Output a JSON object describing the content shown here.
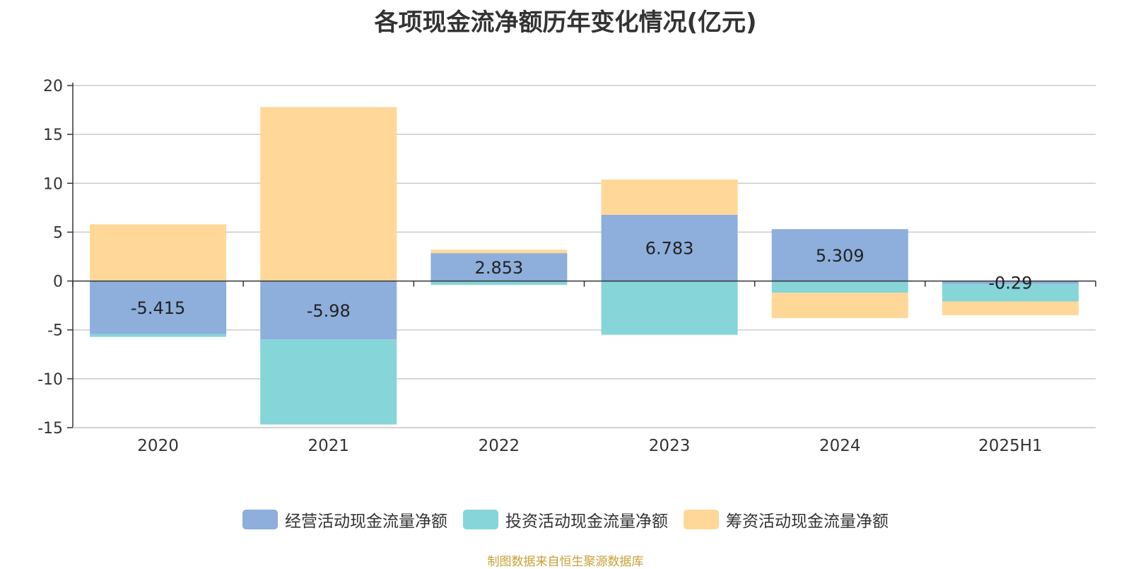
{
  "title": "各项现金流净额历年变化情况(亿元)",
  "source": "制图数据来自恒生聚源数据库",
  "chart_data": {
    "type": "bar",
    "stacked": true,
    "categories": [
      "2020",
      "2021",
      "2022",
      "2023",
      "2024",
      "2025H1"
    ],
    "ylim": [
      -15,
      20
    ],
    "yticks": [
      20,
      15,
      10,
      5,
      0,
      -5,
      -10,
      -15
    ],
    "grid": true,
    "legend_position": "bottom",
    "series": [
      {
        "name": "经营活动现金流量净额",
        "color": "#8eaedb",
        "values": [
          -5.415,
          -5.98,
          2.853,
          6.783,
          5.309,
          -0.29
        ],
        "labels": [
          "-5.415",
          "-5.98",
          "2.853",
          "6.783",
          "5.309",
          "-0.29"
        ]
      },
      {
        "name": "投资活动现金流量净额",
        "color": "#86d5d8",
        "values": [
          -0.3,
          -8.7,
          -0.4,
          -5.5,
          -1.2,
          -1.8
        ]
      },
      {
        "name": "筹资活动现金流量净额",
        "color": "#ffd899",
        "values": [
          5.8,
          17.8,
          0.35,
          3.6,
          -2.6,
          -1.4
        ]
      }
    ]
  }
}
